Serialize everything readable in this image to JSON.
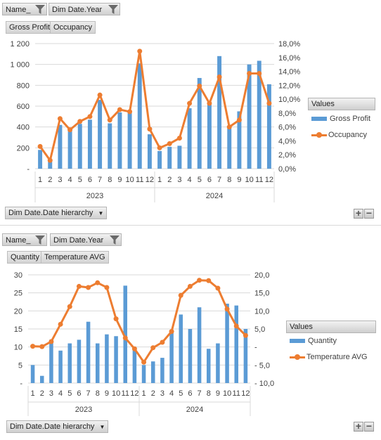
{
  "colors": {
    "bar": "#5b9bd5",
    "line": "#ed7d31",
    "grid": "#d9d9d9"
  },
  "icons": {
    "filter": "funnel-filter-icon"
  },
  "top": {
    "filters": [
      "Name_",
      "Dim Date.Year"
    ],
    "value_buttons": [
      "Gross Profit",
      "Occupancy"
    ],
    "axis_field": "Dim Date.Date  hierarchy",
    "legend_title": "Values",
    "legend": [
      "Gross Profit",
      "Occupancy"
    ]
  },
  "bottom": {
    "filters": [
      "Name_",
      "Dim Date.Year"
    ],
    "value_buttons": [
      "Quantity",
      "Temperature AVG"
    ],
    "axis_field": "Dim Date.Date  hierarchy",
    "legend_title": "Values",
    "legend": [
      "Quantity",
      "Temperature AVG"
    ]
  },
  "expand_collapse": {
    "plus": "+",
    "minus": "−"
  },
  "chart_data": [
    {
      "type": "bar",
      "months": [
        "1",
        "2",
        "3",
        "4",
        "5",
        "6",
        "7",
        "8",
        "9",
        "10",
        "11",
        "12",
        "1",
        "2",
        "3",
        "4",
        "5",
        "6",
        "7",
        "8",
        "9",
        "10",
        "11",
        "12"
      ],
      "years": [
        "2023",
        "2024"
      ],
      "series": [
        {
          "name": "Gross Profit",
          "type": "bar",
          "axis": "left",
          "values": [
            180,
            80,
            420,
            370,
            430,
            470,
            660,
            435,
            540,
            540,
            1010,
            330,
            170,
            210,
            220,
            580,
            870,
            640,
            1080,
            410,
            550,
            1000,
            1035,
            810
          ]
        },
        {
          "name": "Occupancy",
          "type": "line",
          "axis": "right",
          "values": [
            3.2,
            1.2,
            7.2,
            5.6,
            6.8,
            7.5,
            10.6,
            7.0,
            8.5,
            8.2,
            16.9,
            5.7,
            3.0,
            3.6,
            4.4,
            9.4,
            11.9,
            9.4,
            13.2,
            6.0,
            7.0,
            13.7,
            13.7,
            9.4
          ]
        }
      ],
      "y_left": {
        "ticks": [
          "-",
          "200",
          "400",
          "600",
          "800",
          "1 000",
          "1 200"
        ],
        "ylim": [
          0,
          1200
        ]
      },
      "y_right": {
        "ticks": [
          "0,0%",
          "2,0%",
          "4,0%",
          "6,0%",
          "8,0%",
          "10,0%",
          "12,0%",
          "14,0%",
          "16,0%",
          "18,0%"
        ],
        "ylim": [
          0,
          18
        ]
      },
      "grid": true,
      "legend_position": "right"
    },
    {
      "type": "bar",
      "months": [
        "1",
        "2",
        "3",
        "4",
        "5",
        "6",
        "7",
        "8",
        "9",
        "10",
        "11",
        "12",
        "1",
        "2",
        "3",
        "4",
        "5",
        "6",
        "7",
        "8",
        "9",
        "10",
        "11",
        "12"
      ],
      "years": [
        "2023",
        "2024"
      ],
      "series": [
        {
          "name": "Quantity",
          "type": "bar",
          "axis": "left",
          "values": [
            5,
            2,
            12,
            9,
            11,
            12,
            17,
            11,
            13.5,
            13,
            27,
            10,
            5,
            6,
            7,
            14,
            19,
            15,
            21,
            9.5,
            11,
            22,
            21.5,
            15
          ]
        },
        {
          "name": "Temperature AVG",
          "type": "line",
          "axis": "right",
          "values": [
            0.2,
            0.1,
            1.5,
            6.3,
            11.2,
            16.8,
            16.5,
            17.8,
            16.5,
            7.8,
            2.5,
            -0.5,
            -4.2,
            -0.2,
            1.3,
            4.3,
            14.3,
            16.8,
            18.5,
            18.4,
            16.3,
            10.5,
            5.8,
            3.2
          ]
        }
      ],
      "y_left": {
        "ticks": [
          "-",
          "5",
          "10",
          "15",
          "20",
          "25",
          "30"
        ],
        "ylim": [
          0,
          30
        ]
      },
      "y_right": {
        "ticks": [
          "- 10,0",
          "- 5,0",
          "-",
          "5,0",
          "10,0",
          "15,0",
          "20,0"
        ],
        "ylim": [
          -10,
          20
        ]
      },
      "grid": true,
      "legend_position": "right"
    }
  ]
}
